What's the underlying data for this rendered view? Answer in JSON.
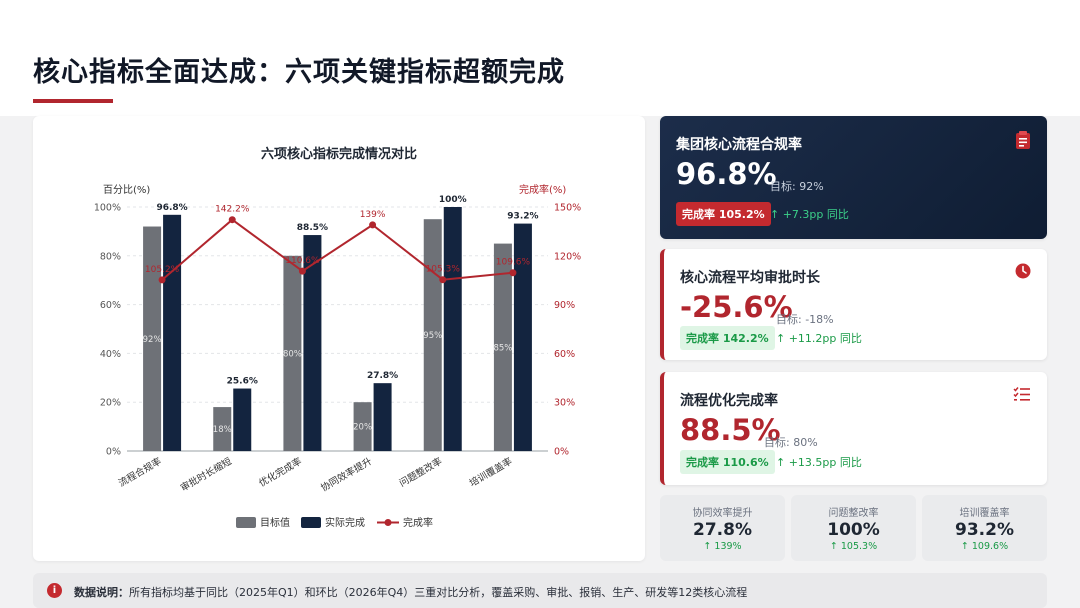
{
  "page": {
    "title": "核心指标全面达成：六项关键指标超额完成"
  },
  "colors": {
    "target": "#6e7177",
    "actual": "#13243f",
    "rate": "#b1262e",
    "accent_red": "#b1262e",
    "positive_green": "#1a9a47"
  },
  "chart_data": {
    "type": "bar",
    "title": "六项核心指标完成情况对比",
    "ylabel": "百分比(%)",
    "y2label": "完成率(%)",
    "categories": [
      "流程合规率",
      "审批时长缩短",
      "优化完成率",
      "协同效率提升",
      "问题整改率",
      "培训覆盖率"
    ],
    "ylim": [
      0,
      100
    ],
    "y2lim": [
      0,
      150
    ],
    "yticks": [
      "0%",
      "20%",
      "40%",
      "60%",
      "80%",
      "100%"
    ],
    "y2ticks": [
      "0%",
      "30%",
      "60%",
      "90%",
      "120%",
      "150%"
    ],
    "series": [
      {
        "name": "目标值",
        "type": "bar",
        "axis": "left",
        "values": [
          92,
          18,
          80,
          20,
          95,
          85
        ],
        "labels": [
          "92%",
          "18%",
          "80%",
          "20%",
          "95%",
          "85%"
        ]
      },
      {
        "name": "实际完成",
        "type": "bar",
        "axis": "left",
        "values": [
          96.8,
          25.6,
          88.5,
          27.8,
          100,
          93.2
        ],
        "labels": [
          "96.8%",
          "25.6%",
          "88.5%",
          "27.8%",
          "100%",
          "93.2%"
        ]
      },
      {
        "name": "完成率",
        "type": "line",
        "axis": "right",
        "values": [
          105.2,
          142.2,
          110.6,
          139,
          105.3,
          109.6
        ],
        "labels": [
          "105.2%",
          "142.2%",
          "110.6%",
          "139%",
          "105.3%",
          "109.6%"
        ]
      }
    ],
    "legend": [
      "目标值",
      "实际完成",
      "完成率"
    ],
    "legend_position": "bottom",
    "grid": true
  },
  "kpis": [
    {
      "title": "集团核心流程合规率",
      "value": "96.8%",
      "target": "目标: 92%",
      "rate": "完成率 105.2%",
      "delta": "↑ +7.3pp 同比",
      "icon": "clipboard-icon"
    },
    {
      "title": "核心流程平均审批时长",
      "value": "-25.6%",
      "target": "目标: -18%",
      "rate": "完成率 142.2%",
      "delta": "↑ +11.2pp 同比",
      "icon": "clock-icon"
    },
    {
      "title": "流程优化完成率",
      "value": "88.5%",
      "target": "目标: 80%",
      "rate": "完成率 110.6%",
      "delta": "↑ +13.5pp 同比",
      "icon": "checklist-icon"
    }
  ],
  "minis": [
    {
      "title": "协同效率提升",
      "value": "27.8%",
      "delta": "↑ 139%"
    },
    {
      "title": "问题整改率",
      "value": "100%",
      "delta": "↑ 105.3%"
    },
    {
      "title": "培训覆盖率",
      "value": "93.2%",
      "delta": "↑ 109.6%"
    }
  ],
  "note": {
    "label": "数据说明：",
    "text": "所有指标均基于同比（2025年Q1）和环比（2026年Q4）三重对比分析，覆盖采购、审批、报销、生产、研发等12类核心流程",
    "icon": "info-icon"
  }
}
